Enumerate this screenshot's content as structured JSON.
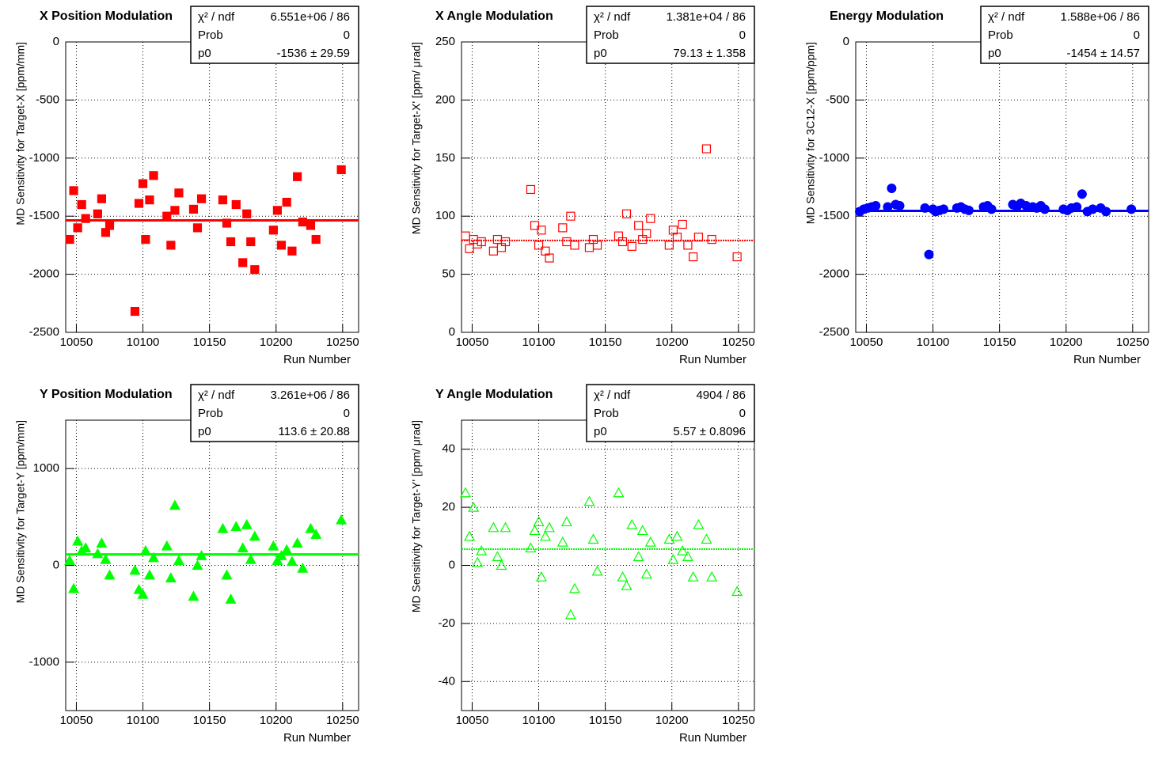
{
  "chart_data": [
    {
      "type": "scatter",
      "title": "X Position Modulation",
      "x_label": "Run Number",
      "y_label": "MD Sensitivity for Target-X [ppm/mm]",
      "xlim": [
        10042,
        10262
      ],
      "xticks": [
        10050,
        10100,
        10150,
        10200,
        10250
      ],
      "ylim": [
        -2500,
        0
      ],
      "yticks": [
        -2500,
        -2000,
        -1500,
        -1000,
        -500,
        0
      ],
      "grid": true,
      "stats": [
        {
          "label": "χ² / ndf",
          "value": "6.551e+06 / 86"
        },
        {
          "label": "Prob",
          "value": "0"
        },
        {
          "label": "p0",
          "value": "-1536 ± 29.59"
        }
      ],
      "fit": -1536,
      "fit_dashed": false,
      "series": [
        {
          "color": "#ff0000",
          "marker": "square",
          "filled": true,
          "x": [
            10045,
            10048,
            10051,
            10054,
            10057,
            10066,
            10069,
            10072,
            10075,
            10094,
            10097,
            10100,
            10102,
            10105,
            10108,
            10118,
            10121,
            10124,
            10127,
            10138,
            10141,
            10144,
            10160,
            10163,
            10166,
            10170,
            10175,
            10178,
            10181,
            10184,
            10198,
            10201,
            10204,
            10208,
            10212,
            10216,
            10220,
            10226,
            10230,
            10249
          ],
          "values": [
            -1700,
            -1280,
            -1600,
            -1400,
            -1520,
            -1480,
            -1350,
            -1640,
            -1580,
            -2320,
            -1390,
            -1220,
            -1700,
            -1360,
            -1150,
            -1500,
            -1750,
            -1450,
            -1300,
            -1440,
            -1600,
            -1350,
            -1360,
            -1560,
            -1720,
            -1400,
            -1900,
            -1480,
            -1720,
            -1960,
            -1620,
            -1450,
            -1750,
            -1380,
            -1800,
            -1160,
            -1550,
            -1580,
            -1700,
            -1100
          ]
        }
      ]
    },
    {
      "type": "scatter",
      "title": "X Angle Modulation",
      "x_label": "Run Number",
      "y_label": "MD Sensitivity for Target-X' [ppm/   μrad]",
      "xlim": [
        10042,
        10262
      ],
      "xticks": [
        10050,
        10100,
        10150,
        10200,
        10250
      ],
      "ylim": [
        0,
        250
      ],
      "yticks": [
        0,
        50,
        100,
        150,
        200,
        250
      ],
      "grid": true,
      "stats": [
        {
          "label": "χ² / ndf",
          "value": "1.381e+04 / 86"
        },
        {
          "label": "Prob",
          "value": "0"
        },
        {
          "label": "p0",
          "value": "79.13 ± 1.358"
        }
      ],
      "fit": 79.13,
      "fit_dashed": true,
      "series": [
        {
          "color": "#ff0000",
          "marker": "square",
          "filled": false,
          "x": [
            10045,
            10048,
            10051,
            10054,
            10057,
            10066,
            10069,
            10072,
            10075,
            10094,
            10097,
            10100,
            10102,
            10105,
            10108,
            10118,
            10121,
            10124,
            10127,
            10138,
            10141,
            10144,
            10160,
            10163,
            10166,
            10170,
            10175,
            10178,
            10181,
            10184,
            10198,
            10201,
            10204,
            10208,
            10212,
            10216,
            10220,
            10226,
            10230,
            10249
          ],
          "values": [
            83,
            72,
            80,
            76,
            78,
            70,
            80,
            73,
            78,
            123,
            92,
            75,
            88,
            70,
            64,
            90,
            78,
            100,
            75,
            73,
            80,
            75,
            83,
            78,
            102,
            74,
            92,
            80,
            85,
            98,
            75,
            88,
            82,
            93,
            75,
            65,
            82,
            158,
            80,
            65
          ]
        }
      ]
    },
    {
      "type": "scatter",
      "title": "Energy Modulation",
      "x_label": "Run Number",
      "y_label": "MD Sensitivity for 3C12-X [ppm/ppm]",
      "xlim": [
        10042,
        10262
      ],
      "xticks": [
        10050,
        10100,
        10150,
        10200,
        10250
      ],
      "ylim": [
        -2500,
        0
      ],
      "yticks": [
        -2500,
        -2000,
        -1500,
        -1000,
        -500,
        0
      ],
      "grid": true,
      "stats": [
        {
          "label": "χ² / ndf",
          "value": "1.588e+06 / 86"
        },
        {
          "label": "Prob",
          "value": "0"
        },
        {
          "label": "p0",
          "value": "-1454 ± 14.57"
        }
      ],
      "fit": -1454,
      "fit_dashed": false,
      "series": [
        {
          "color": "#0000ff",
          "marker": "circle",
          "filled": true,
          "x": [
            10045,
            10048,
            10051,
            10054,
            10057,
            10066,
            10069,
            10072,
            10075,
            10094,
            10097,
            10100,
            10102,
            10105,
            10108,
            10118,
            10121,
            10124,
            10127,
            10138,
            10141,
            10144,
            10160,
            10163,
            10166,
            10170,
            10175,
            10178,
            10181,
            10184,
            10198,
            10201,
            10204,
            10208,
            10212,
            10216,
            10220,
            10226,
            10230,
            10249
          ],
          "values": [
            -1460,
            -1440,
            -1430,
            -1420,
            -1410,
            -1420,
            -1260,
            -1400,
            -1410,
            -1430,
            -1830,
            -1440,
            -1460,
            -1450,
            -1440,
            -1430,
            -1420,
            -1440,
            -1450,
            -1420,
            -1410,
            -1440,
            -1400,
            -1420,
            -1390,
            -1410,
            -1420,
            -1430,
            -1410,
            -1440,
            -1440,
            -1450,
            -1430,
            -1420,
            -1310,
            -1460,
            -1440,
            -1430,
            -1460,
            -1440
          ]
        }
      ]
    },
    {
      "type": "scatter",
      "title": "Y Position Modulation",
      "x_label": "Run Number",
      "y_label": "MD Sensitivity for Target-Y [ppm/mm]",
      "xlim": [
        10042,
        10262
      ],
      "xticks": [
        10050,
        10100,
        10150,
        10200,
        10250
      ],
      "ylim": [
        -1500,
        1500
      ],
      "yticks": [
        -1000,
        0,
        1000
      ],
      "grid": true,
      "stats": [
        {
          "label": "χ² / ndf",
          "value": "3.261e+06 / 86"
        },
        {
          "label": "Prob",
          "value": "0"
        },
        {
          "label": "p0",
          "value": "113.6 ± 20.88"
        }
      ],
      "fit": 113.6,
      "fit_dashed": false,
      "series": [
        {
          "color": "#00ff00",
          "marker": "triangle",
          "filled": true,
          "x": [
            10045,
            10048,
            10051,
            10054,
            10057,
            10066,
            10069,
            10072,
            10075,
            10094,
            10097,
            10100,
            10102,
            10105,
            10108,
            10118,
            10121,
            10124,
            10127,
            10138,
            10141,
            10144,
            10160,
            10163,
            10166,
            10170,
            10175,
            10178,
            10181,
            10184,
            10198,
            10201,
            10204,
            10208,
            10212,
            10216,
            10220,
            10226,
            10230,
            10249
          ],
          "values": [
            50,
            -240,
            250,
            150,
            180,
            120,
            230,
            60,
            -100,
            -50,
            -250,
            -300,
            150,
            -100,
            80,
            200,
            -130,
            620,
            50,
            -320,
            0,
            100,
            380,
            -100,
            -350,
            400,
            180,
            420,
            60,
            300,
            200,
            50,
            100,
            160,
            40,
            230,
            -30,
            380,
            320,
            470
          ]
        }
      ]
    },
    {
      "type": "scatter",
      "title": "Y Angle Modulation",
      "x_label": "Run Number",
      "y_label": "MD Sensitivity for Target-Y' [ppm/   μrad]",
      "xlim": [
        10042,
        10262
      ],
      "xticks": [
        10050,
        10100,
        10150,
        10200,
        10250
      ],
      "ylim": [
        -50,
        50
      ],
      "yticks": [
        -40,
        -20,
        0,
        20,
        40
      ],
      "grid": true,
      "stats": [
        {
          "label": "χ² / ndf",
          "value": "4904 / 86"
        },
        {
          "label": "Prob",
          "value": "0"
        },
        {
          "label": "p0",
          "value": "5.57 ± 0.8096"
        }
      ],
      "fit": 5.57,
      "fit_dashed": true,
      "series": [
        {
          "color": "#00ff00",
          "marker": "triangle",
          "filled": false,
          "x": [
            10045,
            10048,
            10051,
            10054,
            10057,
            10066,
            10069,
            10072,
            10075,
            10094,
            10097,
            10100,
            10102,
            10105,
            10108,
            10118,
            10121,
            10124,
            10127,
            10138,
            10141,
            10144,
            10160,
            10163,
            10166,
            10170,
            10175,
            10178,
            10181,
            10184,
            10198,
            10201,
            10204,
            10208,
            10212,
            10216,
            10220,
            10226,
            10230,
            10249
          ],
          "values": [
            25,
            10,
            20,
            1,
            5,
            13,
            3,
            0,
            13,
            6,
            12,
            15,
            -4,
            10,
            13,
            8,
            15,
            -17,
            -8,
            22,
            9,
            -2,
            25,
            -4,
            -7,
            14,
            3,
            12,
            -3,
            8,
            9,
            2,
            10,
            5,
            3,
            -4,
            14,
            9,
            -4,
            -9
          ]
        }
      ]
    }
  ]
}
